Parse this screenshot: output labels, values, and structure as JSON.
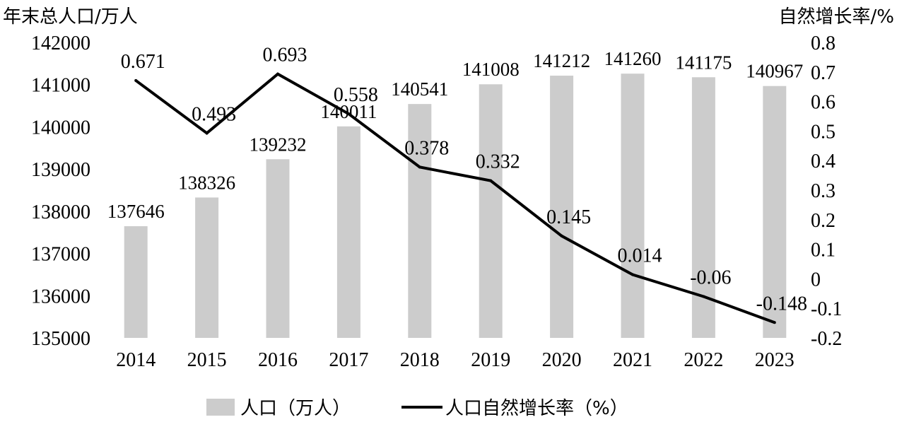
{
  "chart_data": {
    "type": "bar",
    "categories": [
      "2014",
      "2015",
      "2016",
      "2017",
      "2018",
      "2019",
      "2020",
      "2021",
      "2022",
      "2023"
    ],
    "series": [
      {
        "name": "人口（万人）",
        "type": "bar",
        "axis": "left",
        "values": [
          137646,
          138326,
          139232,
          140011,
          140541,
          141008,
          141212,
          141260,
          141175,
          140967
        ],
        "labels": [
          "137646",
          "138326",
          "139232",
          "140011",
          "140541",
          "141008",
          "141212",
          "141260",
          "141175",
          "140967"
        ],
        "color": "#cccccc"
      },
      {
        "name": "人口自然增长率（%）",
        "type": "line",
        "axis": "right",
        "values": [
          0.671,
          0.493,
          0.693,
          0.558,
          0.378,
          0.332,
          0.145,
          0.014,
          -0.06,
          -0.148
        ],
        "labels": [
          "0.671",
          "0.493",
          "0.693",
          "0.558",
          "0.378",
          "0.332",
          "0.145",
          "0.014",
          "-0.06",
          "-0.148"
        ],
        "color": "#000000"
      }
    ],
    "ylabel_left": "年末总人口/万人",
    "ylabel_right": "自然增长率/%",
    "ylim_left": [
      135000,
      142000
    ],
    "yticks_left": [
      "142000",
      "141000",
      "140000",
      "139000",
      "138000",
      "137000",
      "136000",
      "135000"
    ],
    "ylim_right": [
      -0.2,
      0.8
    ],
    "yticks_right": [
      "0.8",
      "0.7",
      "0.6",
      "0.5",
      "0.4",
      "0.3",
      "0.2",
      "0.1",
      "0",
      "-0.1",
      "-0.2"
    ],
    "grid": false,
    "legend_position": "bottom"
  }
}
